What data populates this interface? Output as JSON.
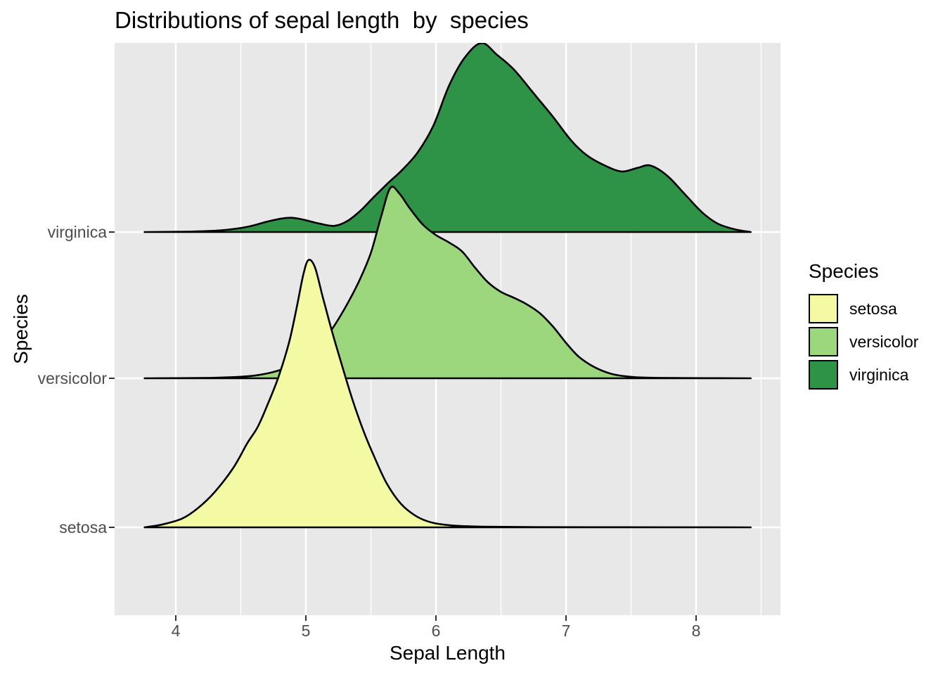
{
  "title": "Distributions of sepal length  by  species",
  "x_axis": {
    "label": "Sepal Length",
    "tick_labels": [
      "4",
      "5",
      "6",
      "7",
      "8"
    ]
  },
  "y_axis": {
    "label": "Species",
    "tick_labels": [
      "setosa",
      "versicolor",
      "virginica"
    ]
  },
  "legend": {
    "title": "Species",
    "items": [
      {
        "label": "setosa",
        "color": "#F3FAA3"
      },
      {
        "label": "versicolor",
        "color": "#9CD67D"
      },
      {
        "label": "virginica",
        "color": "#2E9347"
      }
    ]
  },
  "colors": {
    "panel_background": "#E8E8E8",
    "gridline": "#FFFFFF",
    "ridge_outline": "#000000",
    "axis_text": "#4D4D4D",
    "tick_mark": "#333333",
    "title_text": "#000000"
  },
  "chart_data": {
    "type": "area",
    "variant": "ridgeline-density",
    "title": "Distributions of sepal length  by  species",
    "xlabel": "Sepal Length",
    "ylabel": "Species",
    "x_range": [
      3.54,
      8.66
    ],
    "x_major_ticks": [
      4,
      5,
      6,
      7,
      8
    ],
    "x_minor_ticks": [
      4.5,
      5.5,
      6.5,
      7.5,
      8.5
    ],
    "categories": [
      "setosa",
      "versicolor",
      "virginica"
    ],
    "grid": "on",
    "legend_position": "right",
    "height_unit": "1.0 = vertical distance between adjacent category baselines",
    "series": [
      {
        "name": "setosa",
        "fill": "#F3FAA3",
        "peak": {
          "x": 5.02,
          "height": 1.81
        },
        "points": [
          [
            3.76,
            0
          ],
          [
            3.9,
            0.02
          ],
          [
            4.05,
            0.06
          ],
          [
            4.17,
            0.13
          ],
          [
            4.3,
            0.24
          ],
          [
            4.44,
            0.4
          ],
          [
            4.55,
            0.57
          ],
          [
            4.63,
            0.68
          ],
          [
            4.71,
            0.84
          ],
          [
            4.79,
            1.02
          ],
          [
            4.87,
            1.25
          ],
          [
            4.93,
            1.49
          ],
          [
            4.98,
            1.71
          ],
          [
            5.02,
            1.81
          ],
          [
            5.07,
            1.76
          ],
          [
            5.13,
            1.56
          ],
          [
            5.2,
            1.33
          ],
          [
            5.28,
            1.09
          ],
          [
            5.36,
            0.86
          ],
          [
            5.44,
            0.66
          ],
          [
            5.52,
            0.49
          ],
          [
            5.62,
            0.3
          ],
          [
            5.73,
            0.16
          ],
          [
            5.85,
            0.075
          ],
          [
            5.97,
            0.032
          ],
          [
            6.12,
            0.013
          ],
          [
            6.35,
            0.005
          ],
          [
            6.7,
            0.002
          ],
          [
            7.2,
            0.001
          ],
          [
            8.42,
            0
          ]
        ]
      },
      {
        "name": "versicolor",
        "fill": "#9CD67D",
        "peak": {
          "x": 5.65,
          "height": 1.29
        },
        "points": [
          [
            3.76,
            0
          ],
          [
            4.2,
            0.002
          ],
          [
            4.45,
            0.008
          ],
          [
            4.62,
            0.02
          ],
          [
            4.78,
            0.05
          ],
          [
            4.92,
            0.1
          ],
          [
            5.06,
            0.19
          ],
          [
            5.19,
            0.32
          ],
          [
            5.31,
            0.49
          ],
          [
            5.41,
            0.66
          ],
          [
            5.5,
            0.85
          ],
          [
            5.58,
            1.1
          ],
          [
            5.65,
            1.29
          ],
          [
            5.72,
            1.25
          ],
          [
            5.8,
            1.15
          ],
          [
            5.9,
            1.04
          ],
          [
            6.0,
            0.97
          ],
          [
            6.1,
            0.92
          ],
          [
            6.2,
            0.86
          ],
          [
            6.3,
            0.75
          ],
          [
            6.4,
            0.65
          ],
          [
            6.5,
            0.585
          ],
          [
            6.6,
            0.545
          ],
          [
            6.7,
            0.5
          ],
          [
            6.8,
            0.44
          ],
          [
            6.9,
            0.35
          ],
          [
            7.0,
            0.24
          ],
          [
            7.1,
            0.145
          ],
          [
            7.22,
            0.075
          ],
          [
            7.35,
            0.03
          ],
          [
            7.5,
            0.01
          ],
          [
            7.7,
            0.003
          ],
          [
            8.42,
            0
          ]
        ]
      },
      {
        "name": "virginica",
        "fill": "#2E9347",
        "peak": {
          "x": 6.35,
          "height": 1.28
        },
        "points": [
          [
            3.76,
            0
          ],
          [
            4.1,
            0.003
          ],
          [
            4.35,
            0.012
          ],
          [
            4.55,
            0.035
          ],
          [
            4.7,
            0.07
          ],
          [
            4.82,
            0.092
          ],
          [
            4.9,
            0.096
          ],
          [
            4.99,
            0.082
          ],
          [
            5.1,
            0.058
          ],
          [
            5.22,
            0.042
          ],
          [
            5.32,
            0.075
          ],
          [
            5.42,
            0.145
          ],
          [
            5.52,
            0.235
          ],
          [
            5.63,
            0.33
          ],
          [
            5.74,
            0.42
          ],
          [
            5.86,
            0.54
          ],
          [
            5.98,
            0.72
          ],
          [
            6.1,
            0.99
          ],
          [
            6.22,
            1.18
          ],
          [
            6.35,
            1.28
          ],
          [
            6.47,
            1.2
          ],
          [
            6.6,
            1.1
          ],
          [
            6.76,
            0.93
          ],
          [
            6.9,
            0.78
          ],
          [
            7.04,
            0.62
          ],
          [
            7.16,
            0.52
          ],
          [
            7.3,
            0.45
          ],
          [
            7.43,
            0.41
          ],
          [
            7.55,
            0.435
          ],
          [
            7.65,
            0.45
          ],
          [
            7.78,
            0.38
          ],
          [
            7.92,
            0.25
          ],
          [
            8.05,
            0.13
          ],
          [
            8.17,
            0.055
          ],
          [
            8.3,
            0.018
          ],
          [
            8.42,
            0
          ]
        ]
      }
    ]
  }
}
